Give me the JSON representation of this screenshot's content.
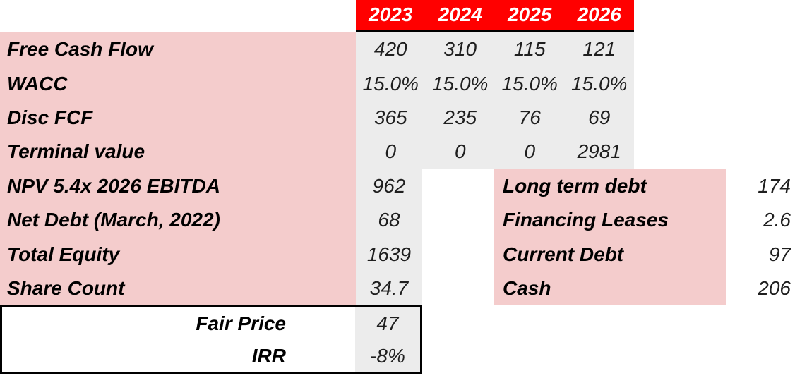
{
  "colors": {
    "header_bg": "#ff0000",
    "header_text": "#ffffff",
    "label_bg": "#f4cccc",
    "value_bg": "#ececec",
    "label_text": "#000000",
    "value_text": "#1f1f1f",
    "border": "#000000"
  },
  "header": {
    "years": [
      "2023",
      "2024",
      "2025",
      "2026"
    ]
  },
  "dcf_rows": [
    {
      "label": "Free Cash Flow",
      "values": [
        "420",
        "310",
        "115",
        "121"
      ]
    },
    {
      "label": "WACC",
      "values": [
        "15.0%",
        "15.0%",
        "15.0%",
        "15.0%"
      ]
    },
    {
      "label": "Disc FCF",
      "values": [
        "365",
        "235",
        "76",
        "69"
      ]
    },
    {
      "label": "Terminal value",
      "values": [
        "0",
        "0",
        "0",
        "2981"
      ]
    }
  ],
  "equity_rows": [
    {
      "label": "NPV 5.4x 2026 EBITDA",
      "value": "962"
    },
    {
      "label": "Net Debt (March, 2022)",
      "value": "68"
    },
    {
      "label": "Total Equity",
      "value": "1639"
    },
    {
      "label": "Share Count",
      "value": "34.7"
    }
  ],
  "debt_rows": [
    {
      "label": "Long term debt",
      "value": "174"
    },
    {
      "label": "Financing Leases",
      "value": "2.6"
    },
    {
      "label": "Current Debt",
      "value": "97"
    },
    {
      "label": "Cash",
      "value": "206"
    }
  ],
  "summary_rows": [
    {
      "label": "Fair Price",
      "value": "47"
    },
    {
      "label": "IRR",
      "value": "-8%"
    }
  ]
}
